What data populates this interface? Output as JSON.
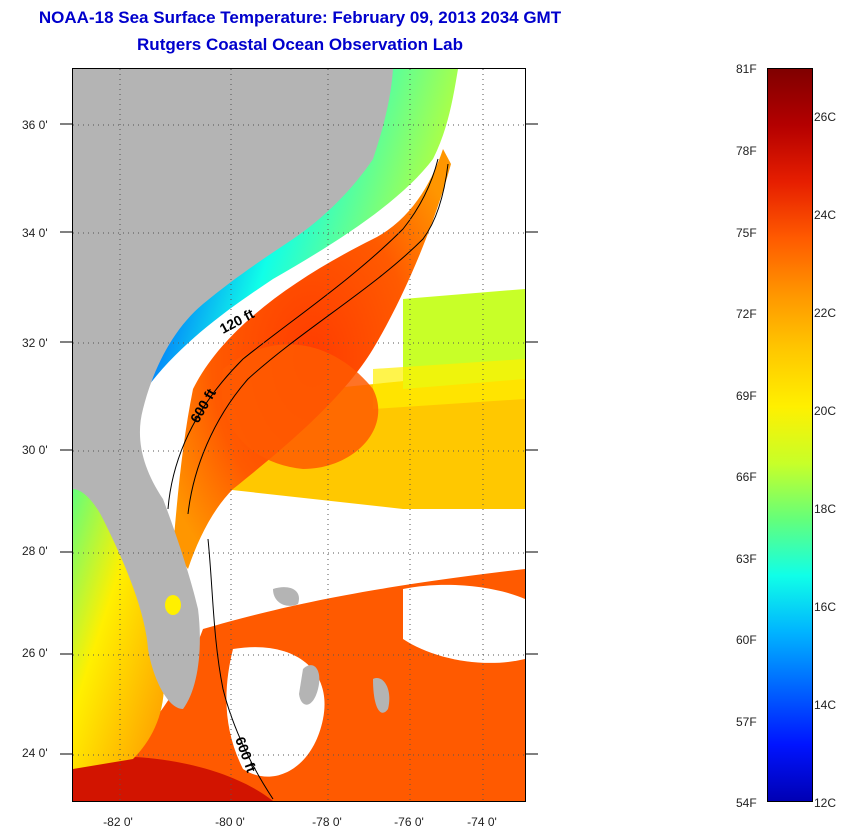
{
  "header": {
    "title": "NOAA-18 Sea Surface Temperature:  February 09, 2013 2034 GMT",
    "subtitle": "Rutgers Coastal Ocean Observation Lab"
  },
  "map": {
    "lat_labels": [
      "36 0'",
      "34 0'",
      "32 0'",
      "30 0'",
      "28 0'",
      "26 0'",
      "24 0'"
    ],
    "lon_labels": [
      "-82 0'",
      "-80 0'",
      "-78 0'",
      "-76 0'",
      "-74 0'"
    ],
    "contour_labels": [
      "120 ft",
      "600 ft",
      "600 ft"
    ],
    "colors": {
      "land": "#b4b4b4",
      "cloud": "#ffffff",
      "grid": "#555555"
    }
  },
  "colorbar": {
    "fahrenheit_labels": [
      "81F",
      "78F",
      "75F",
      "72F",
      "69F",
      "66F",
      "63F",
      "60F",
      "57F",
      "54F"
    ],
    "celsius_labels": [
      "26C",
      "24C",
      "22C",
      "20C",
      "18C",
      "16C",
      "14C",
      "12C"
    ],
    "gradient": [
      "#800000",
      "#b40000",
      "#e61e00",
      "#ff5a00",
      "#ff9600",
      "#ffc800",
      "#fff000",
      "#c8ff28",
      "#64ff7a",
      "#10ffe8",
      "#00b4ff",
      "#0064ff",
      "#0014ff",
      "#0000b4"
    ]
  }
}
